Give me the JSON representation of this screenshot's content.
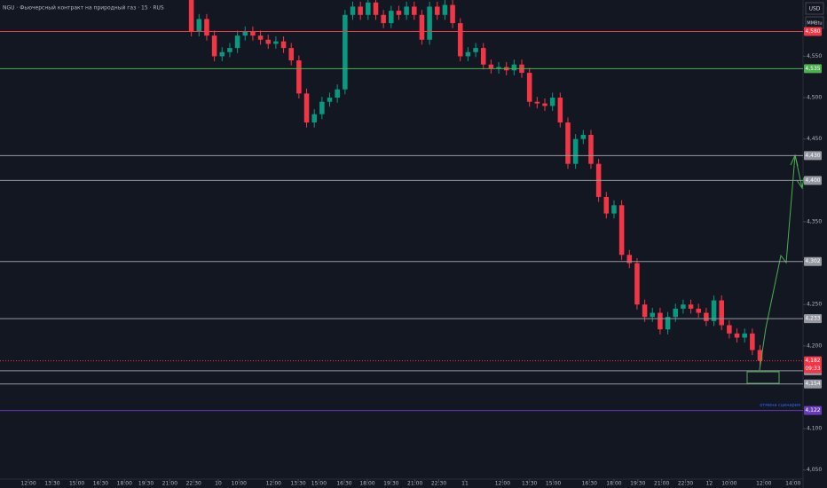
{
  "chart_data": {
    "type": "candlestick",
    "title": "NGU · Фьючерсный контракт на природный газ · 15 · RUS",
    "currency": "USD",
    "unit": "MMBtu",
    "up_color": "#089981",
    "down_color": "#f23645",
    "open": [
      4620,
      4580,
      4595,
      4575,
      4550,
      4555,
      4560,
      4575,
      4580,
      4575,
      4570,
      4565,
      4568,
      4560,
      4545,
      4505,
      4470,
      4480,
      4495,
      4500,
      4510,
      4600,
      4610,
      4600,
      4615,
      4600,
      4590,
      4605,
      4600,
      4610,
      4600,
      4570,
      4610,
      4600,
      4612,
      4590,
      4550,
      4555,
      4560,
      4540,
      4535,
      4537,
      4533,
      4540,
      4530,
      4495,
      4493,
      4490,
      4500,
      4470,
      4420,
      4450,
      4455,
      4420,
      4380,
      4360,
      4370,
      4310,
      4300,
      4250,
      4235,
      4240,
      4220,
      4235,
      4245,
      4250,
      4245,
      4240,
      4230,
      4255,
      4225,
      4215,
      4210,
      4215,
      4195
    ],
    "high": [
      4626,
      4601,
      4601,
      4581,
      4561,
      4566,
      4581,
      4586,
      4586,
      4581,
      4576,
      4574,
      4574,
      4566,
      4551,
      4511,
      4486,
      4501,
      4506,
      4516,
      4606,
      4616,
      4616,
      4621,
      4621,
      4606,
      4611,
      4611,
      4616,
      4616,
      4606,
      4616,
      4616,
      4618,
      4618,
      4596,
      4561,
      4566,
      4566,
      4546,
      4543,
      4543,
      4546,
      4546,
      4536,
      4501,
      4499,
      4506,
      4506,
      4476,
      4456,
      4461,
      4461,
      4426,
      4386,
      4376,
      4376,
      4316,
      4306,
      4256,
      4246,
      4246,
      4241,
      4251,
      4256,
      4256,
      4251,
      4246,
      4261,
      4261,
      4231,
      4221,
      4221,
      4221,
      4201
    ],
    "low": [
      4574,
      4574,
      4569,
      4544,
      4544,
      4549,
      4554,
      4569,
      4569,
      4564,
      4559,
      4559,
      4554,
      4539,
      4499,
      4464,
      4464,
      4474,
      4489,
      4494,
      4504,
      4594,
      4594,
      4594,
      4594,
      4584,
      4584,
      4594,
      4594,
      4594,
      4564,
      4564,
      4594,
      4594,
      4584,
      4544,
      4544,
      4549,
      4534,
      4529,
      4529,
      4527,
      4527,
      4524,
      4489,
      4487,
      4484,
      4484,
      4464,
      4414,
      4414,
      4444,
      4414,
      4374,
      4354,
      4354,
      4304,
      4294,
      4244,
      4229,
      4229,
      4214,
      4214,
      4229,
      4239,
      4239,
      4234,
      4224,
      4224,
      4219,
      4209,
      4204,
      4204,
      4189,
      4176
    ],
    "close": [
      4580,
      4595,
      4575,
      4550,
      4555,
      4560,
      4575,
      4580,
      4575,
      4570,
      4565,
      4568,
      4560,
      4545,
      4505,
      4470,
      4480,
      4495,
      4500,
      4510,
      4600,
      4610,
      4600,
      4615,
      4600,
      4590,
      4605,
      4600,
      4610,
      4600,
      4570,
      4610,
      4600,
      4612,
      4590,
      4550,
      4555,
      4560,
      4540,
      4535,
      4537,
      4533,
      4540,
      4530,
      4495,
      4493,
      4490,
      4500,
      4470,
      4420,
      4450,
      4455,
      4420,
      4380,
      4360,
      4370,
      4310,
      4300,
      4250,
      4235,
      4240,
      4220,
      4235,
      4245,
      4250,
      4245,
      4240,
      4230,
      4255,
      4225,
      4215,
      4210,
      4215,
      4195,
      4182
    ],
    "xlim": [
      -24.9,
      79.6
    ],
    "xticks": [
      {
        "value": -21.2,
        "label": "12:00"
      },
      {
        "value": -18.1,
        "label": "13:30"
      },
      {
        "value": -14.9,
        "label": "15:00"
      },
      {
        "value": -11.8,
        "label": "16:30"
      },
      {
        "value": -8.7,
        "label": "18:00"
      },
      {
        "value": -5.9,
        "label": "19:30"
      },
      {
        "value": -2.8,
        "label": "21:00"
      },
      {
        "value": 0.3,
        "label": "22:30"
      },
      {
        "value": 3.5,
        "label": "10"
      },
      {
        "value": 6.2,
        "label": "10:00"
      },
      {
        "value": 10.7,
        "label": "12:00"
      },
      {
        "value": 13.9,
        "label": "13:30"
      },
      {
        "value": 16.6,
        "label": "15:00"
      },
      {
        "value": 19.9,
        "label": "16:30"
      },
      {
        "value": 22.9,
        "label": "18:00"
      },
      {
        "value": 26,
        "label": "19:30"
      },
      {
        "value": 29.1,
        "label": "21:00"
      },
      {
        "value": 32.2,
        "label": "22:30"
      },
      {
        "value": 35.6,
        "label": "11"
      },
      {
        "value": 40.5,
        "label": "12:00"
      },
      {
        "value": 44,
        "label": "13:30"
      },
      {
        "value": 47.1,
        "label": "15:00"
      },
      {
        "value": 51.8,
        "label": "16:30"
      },
      {
        "value": 55,
        "label": "18:00"
      },
      {
        "value": 58.1,
        "label": "19:30"
      },
      {
        "value": 61.2,
        "label": "21:00"
      },
      {
        "value": 64.3,
        "label": "22:30"
      },
      {
        "value": 67.4,
        "label": "12"
      },
      {
        "value": 70,
        "label": "10:00"
      },
      {
        "value": 74.5,
        "label": "12:00"
      },
      {
        "value": 78.3,
        "label": "14:00"
      }
    ],
    "ylim": [
      4039,
      4618
    ],
    "yticks": [
      {
        "value": 4550,
        "label": "4,550"
      },
      {
        "value": 4500,
        "label": "4,500"
      },
      {
        "value": 4450,
        "label": "4,450"
      },
      {
        "value": 4350,
        "label": "4,350"
      },
      {
        "value": 4250,
        "label": "4,250"
      },
      {
        "value": 4200,
        "label": "4,200"
      },
      {
        "value": 4100,
        "label": "4,100"
      },
      {
        "value": 4050,
        "label": "4,050"
      }
    ],
    "levels": [
      {
        "value": 4580,
        "label": "4,580",
        "color": "#f23645"
      },
      {
        "value": 4535,
        "label": "4,535",
        "color": "#4caf50"
      },
      {
        "value": 4430,
        "label": "4,430",
        "color": "#9598a1"
      },
      {
        "value": 4400,
        "label": "4,400",
        "color": "#9598a1"
      },
      {
        "value": 4302,
        "label": "4,302",
        "color": "#9598a1"
      },
      {
        "value": 4233,
        "label": "4,233",
        "color": "#9598a1"
      },
      {
        "value": 4170,
        "label": "4,170",
        "color": "#9598a1"
      },
      {
        "value": 4154,
        "label": "4,154",
        "color": "#9598a1"
      },
      {
        "value": 4122,
        "label": "4,122",
        "color": "#673ab7"
      }
    ],
    "annotation": "отмена сценария",
    "current_price": {
      "value": 4182,
      "label": "4,182",
      "timer": "09:33"
    }
  }
}
